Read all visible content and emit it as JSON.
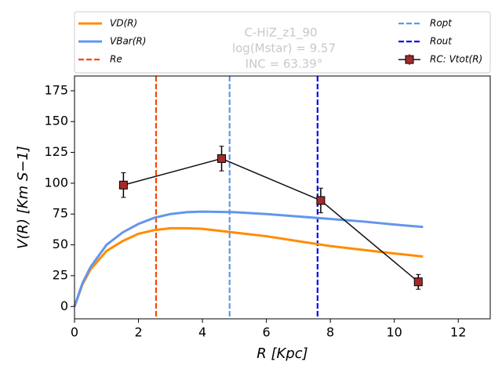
{
  "chart_data": {
    "type": "line",
    "xlabel": "R [Kpc]",
    "ylabel": "V(R) [Km S−1]",
    "xlim": [
      0,
      13
    ],
    "ylim": [
      -10,
      187
    ],
    "xticks": [
      0,
      2,
      4,
      6,
      8,
      10,
      12
    ],
    "yticks": [
      0,
      25,
      50,
      75,
      100,
      125,
      150,
      175
    ],
    "annotations": [
      "C-HiZ_z1_90",
      "log(Mstar) = 9.57",
      "INC = 63.39°"
    ],
    "series": [
      {
        "name": "VD(R)",
        "color": "#ff8c00",
        "x": [
          0,
          0.25,
          0.5,
          1,
          1.5,
          2,
          2.5,
          3,
          3.5,
          4,
          5,
          6,
          7,
          8,
          9,
          10,
          10.9
        ],
        "values": [
          0,
          18,
          30,
          45,
          53,
          59,
          62,
          63.5,
          63.5,
          63,
          60,
          57,
          53,
          49,
          46,
          43,
          40.5
        ]
      },
      {
        "name": "VBar(R)",
        "color": "#6495ed",
        "x": [
          0,
          0.25,
          0.5,
          1,
          1.5,
          2,
          2.5,
          3,
          3.5,
          4,
          5,
          6,
          7,
          8,
          9,
          10,
          10.9
        ],
        "values": [
          0,
          19,
          32,
          50,
          60,
          67,
          72,
          75,
          76.5,
          77,
          76.5,
          75,
          73,
          71,
          69,
          66.5,
          64.5
        ]
      },
      {
        "name": "RC: Vtot(R)",
        "color": "#a52a2a",
        "x": [
          1.53,
          4.6,
          7.7,
          10.75
        ],
        "values": [
          98.5,
          120,
          86,
          20
        ],
        "errors": [
          10,
          10,
          10,
          6
        ]
      }
    ],
    "vlines": [
      {
        "name": "Re",
        "color": "#ff4500",
        "value": 2.55
      },
      {
        "name": "Ropt",
        "color": "#6495ed",
        "value": 4.85
      },
      {
        "name": "Rout",
        "color": "#0000ff",
        "value": 7.6
      }
    ]
  }
}
